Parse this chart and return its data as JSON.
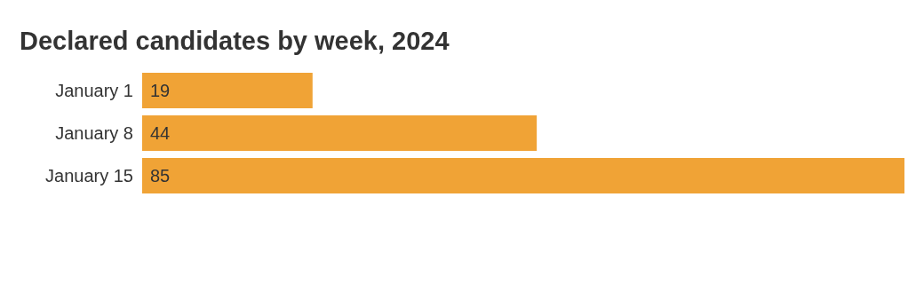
{
  "chart_data": {
    "type": "bar",
    "orientation": "horizontal",
    "title": "Declared candidates by week, 2024",
    "categories": [
      "January 1",
      "January 8",
      "January 15"
    ],
    "values": [
      19,
      44,
      85
    ],
    "color": "#f0a336",
    "data_labels": true
  }
}
